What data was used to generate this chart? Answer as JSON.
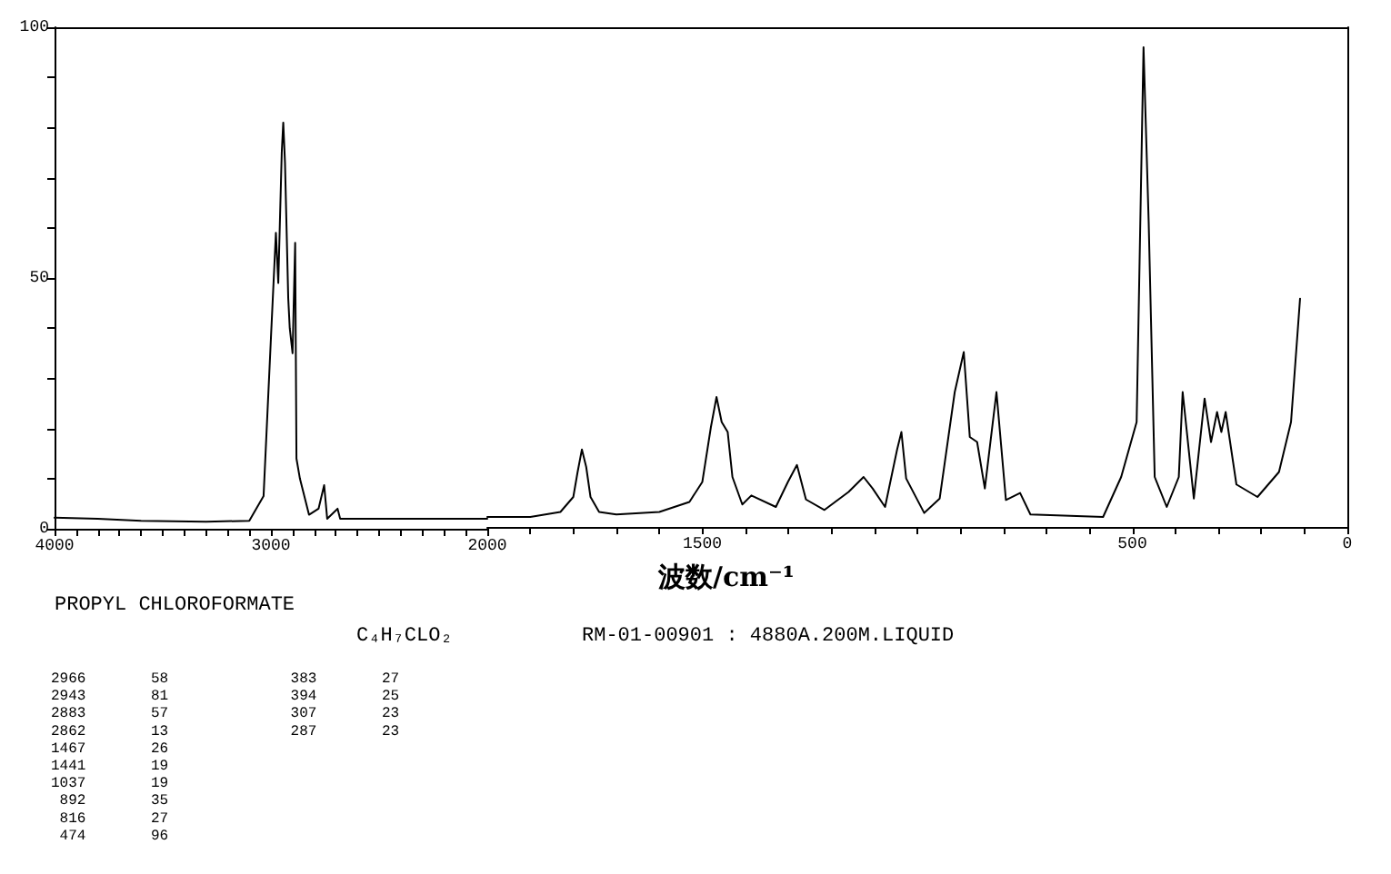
{
  "chart_data": [
    {
      "type": "line",
      "title": "PROPYL CHLOROFORMATE",
      "subtitle": "C₄H₇CLO₂",
      "annotations": [
        "RM-01-00901 : 4880A.200M.LIQUID",
        "2966 58",
        "2943 81",
        "2883 57",
        "2862 13",
        "1467 26",
        "1441 19",
        "1037 19",
        "892 35",
        "816 27",
        "474 96",
        "383 27",
        "394 25",
        "307 23",
        "287 23"
      ],
      "x": [
        4000,
        3800,
        3600,
        3300,
        3100,
        3034,
        3000,
        2977,
        2966,
        2950,
        2943,
        2935,
        2920,
        2913,
        2900,
        2888,
        2882,
        2866,
        2824,
        2780,
        2754,
        2740,
        2692,
        2680,
        2600,
        2400,
        2200,
        2000
      ],
      "series": [
        {
          "color": "#000000",
          "values": [
            2.2,
            2,
            1.6,
            1.4,
            1.6,
            6.5,
            38,
            59,
            49,
            75,
            81,
            73,
            46,
            40,
            35,
            57,
            14,
            10,
            2.8,
            4,
            8.7,
            2,
            4,
            2,
            2,
            2,
            2,
            2
          ]
        }
      ],
      "xlim": [
        4000,
        2000
      ],
      "xticks": [
        4000,
        {
          "value": 3900,
          "label": null
        },
        {
          "value": 3800,
          "label": null
        },
        {
          "value": 3700,
          "label": null
        },
        {
          "value": 3600,
          "label": null
        },
        {
          "value": 3500,
          "label": null
        },
        {
          "value": 3400,
          "label": null
        },
        {
          "value": 3300,
          "label": null
        },
        {
          "value": 3200,
          "label": null
        },
        {
          "value": 3100,
          "label": null
        },
        3000,
        {
          "value": 2900,
          "label": null
        },
        {
          "value": 2800,
          "label": null
        },
        {
          "value": 2700,
          "label": null
        },
        {
          "value": 2600,
          "label": null
        },
        {
          "value": 2500,
          "label": null
        },
        {
          "value": 2400,
          "label": null
        },
        {
          "value": 2300,
          "label": null
        },
        {
          "value": 2200,
          "label": null
        },
        {
          "value": 2100,
          "label": null
        },
        2000
      ],
      "ylim": [
        0,
        100
      ],
      "yticks": [
        0,
        {
          "value": 10,
          "label": null
        },
        {
          "value": 20,
          "label": null
        },
        {
          "value": 30,
          "label": null
        },
        {
          "value": 40,
          "label": null
        },
        50,
        {
          "value": 60,
          "label": null
        },
        {
          "value": 70,
          "label": null
        },
        {
          "value": 80,
          "label": null
        },
        {
          "value": 90,
          "label": null
        },
        100
      ],
      "grid": false,
      "marker": "none",
      "line_style": "solid"
    },
    {
      "type": "line",
      "xlabel": "波数/cm⁻¹",
      "x": [
        2000,
        1900,
        1830,
        1800,
        1790,
        1780,
        1770,
        1760,
        1740,
        1700,
        1600,
        1530,
        1500,
        1480,
        1467,
        1455,
        1441,
        1430,
        1407,
        1386,
        1329,
        1301,
        1280,
        1259,
        1216,
        1160,
        1125,
        1104,
        1075,
        1047,
        1037,
        1026,
        984,
        948,
        913,
        892,
        878,
        861,
        843,
        816,
        794,
        761,
        737,
        568,
        526,
        490,
        474,
        462,
        448,
        420,
        392,
        383,
        357,
        332,
        317,
        303,
        293,
        283,
        258,
        209,
        159,
        131,
        110
      ],
      "series": [
        {
          "color": "#000000",
          "values": [
            2,
            2,
            3,
            6,
            11,
            15.5,
            12,
            6,
            3,
            2.5,
            3,
            5,
            9,
            20,
            26,
            21,
            19,
            10,
            4.5,
            6.3,
            4,
            9,
            12.4,
            5.5,
            3.4,
            7,
            10,
            7.7,
            4,
            15.5,
            19,
            9.7,
            2.8,
            5.7,
            27,
            35,
            18,
            17,
            7.7,
            27,
            5.4,
            6.8,
            2.5,
            2,
            10,
            21,
            96,
            61,
            10,
            4,
            10,
            27,
            5.7,
            25.7,
            17,
            23,
            19,
            23,
            8.5,
            6,
            11,
            21,
            45.7
          ]
        }
      ],
      "xlim": [
        2000,
        0
      ],
      "xticks": [
        {
          "value": 2000,
          "label": null
        },
        {
          "value": 1900,
          "label": null
        },
        {
          "value": 1800,
          "label": null
        },
        {
          "value": 1700,
          "label": null
        },
        {
          "value": 1600,
          "label": null
        },
        1500,
        {
          "value": 1400,
          "label": null
        },
        {
          "value": 1300,
          "label": null
        },
        {
          "value": 1200,
          "label": null
        },
        {
          "value": 1100,
          "label": null
        },
        {
          "value": 1000,
          "label": null
        },
        {
          "value": 900,
          "label": null
        },
        {
          "value": 800,
          "label": null
        },
        {
          "value": 700,
          "label": null
        },
        {
          "value": 600,
          "label": null
        },
        500,
        {
          "value": 400,
          "label": null
        },
        {
          "value": 300,
          "label": null
        },
        {
          "value": 200,
          "label": null
        },
        {
          "value": 100,
          "label": null
        },
        0
      ],
      "ylim": [
        0,
        100
      ],
      "tick_labels": "x",
      "grid": false,
      "marker": "none",
      "line_style": "solid"
    }
  ]
}
